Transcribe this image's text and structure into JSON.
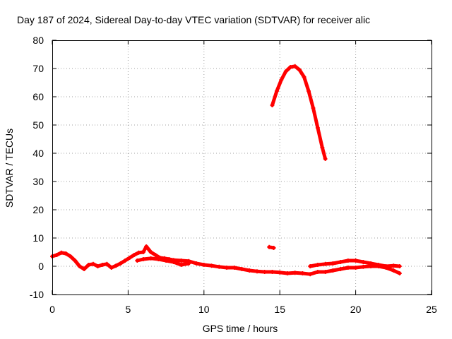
{
  "chart_data": {
    "type": "scatter",
    "title": "Day 187 of 2024, Sidereal Day-to-day VTEC variation (SDTVAR) for receiver alic",
    "xlabel": "GPS time / hours",
    "ylabel": "SDTVAR / TECUs",
    "xlim": [
      0,
      25
    ],
    "ylim": [
      -10,
      80
    ],
    "xticks": [
      0,
      5,
      10,
      15,
      20,
      25
    ],
    "xtick_labels": [
      "0",
      "5",
      "10",
      "15",
      "20",
      "25"
    ],
    "yticks": [
      -10,
      0,
      10,
      20,
      30,
      40,
      50,
      60,
      70,
      80
    ],
    "ytick_labels": [
      "-10",
      "0",
      "10",
      "20",
      "30",
      "40",
      "50",
      "60",
      "70",
      "80"
    ],
    "grid": true,
    "marker_color": "#ff0000",
    "series": [
      {
        "name": "main track",
        "points": [
          [
            0.0,
            3.5
          ],
          [
            0.3,
            4.0
          ],
          [
            0.6,
            4.8
          ],
          [
            0.9,
            4.5
          ],
          [
            1.2,
            3.5
          ],
          [
            1.5,
            2.0
          ],
          [
            1.8,
            0.0
          ],
          [
            2.1,
            -1.0
          ],
          [
            2.4,
            0.5
          ],
          [
            2.7,
            0.8
          ],
          [
            3.0,
            0.0
          ],
          [
            3.3,
            0.5
          ],
          [
            3.6,
            0.8
          ],
          [
            3.9,
            -0.5
          ],
          [
            4.2,
            0.2
          ],
          [
            4.5,
            1.0
          ],
          [
            4.8,
            2.0
          ],
          [
            5.1,
            3.0
          ],
          [
            5.4,
            4.0
          ],
          [
            5.7,
            4.8
          ],
          [
            6.0,
            5.0
          ],
          [
            6.2,
            7.0
          ],
          [
            6.5,
            5.0
          ],
          [
            6.8,
            4.0
          ],
          [
            7.1,
            3.0
          ],
          [
            7.4,
            2.8
          ],
          [
            7.7,
            2.5
          ],
          [
            8.0,
            2.2
          ],
          [
            8.5,
            2.0
          ],
          [
            9.0,
            1.8
          ],
          [
            9.5,
            1.0
          ],
          [
            10.0,
            0.5
          ],
          [
            10.5,
            0.2
          ],
          [
            11.0,
            -0.2
          ],
          [
            11.5,
            -0.5
          ],
          [
            12.0,
            -0.5
          ],
          [
            12.5,
            -1.0
          ],
          [
            13.0,
            -1.5
          ],
          [
            13.5,
            -1.8
          ],
          [
            14.0,
            -2.0
          ],
          [
            14.5,
            -2.0
          ],
          [
            15.0,
            -2.2
          ],
          [
            15.5,
            -2.5
          ],
          [
            16.0,
            -2.3
          ],
          [
            16.5,
            -2.5
          ],
          [
            17.0,
            -2.8
          ],
          [
            17.5,
            -2.0
          ],
          [
            18.0,
            -2.0
          ],
          [
            18.5,
            -1.5
          ],
          [
            19.0,
            -1.0
          ],
          [
            19.5,
            -0.5
          ],
          [
            20.0,
            -0.5
          ],
          [
            20.5,
            -0.2
          ],
          [
            21.0,
            0.0
          ],
          [
            21.5,
            0.0
          ],
          [
            22.0,
            -0.5
          ],
          [
            22.5,
            -1.5
          ],
          [
            22.9,
            -2.5
          ]
        ]
      },
      {
        "name": "upper branch",
        "points": [
          [
            5.6,
            2.0
          ],
          [
            6.0,
            2.5
          ],
          [
            6.5,
            2.8
          ],
          [
            7.0,
            2.5
          ],
          [
            7.5,
            2.0
          ],
          [
            8.0,
            1.5
          ],
          [
            8.5,
            0.5
          ],
          [
            9.0,
            1.0
          ],
          [
            17.0,
            0.0
          ],
          [
            17.5,
            0.5
          ],
          [
            18.0,
            0.8
          ],
          [
            18.5,
            1.0
          ],
          [
            19.0,
            1.5
          ],
          [
            19.5,
            2.0
          ],
          [
            20.0,
            2.0
          ],
          [
            20.5,
            1.5
          ],
          [
            21.0,
            1.0
          ],
          [
            21.5,
            0.5
          ],
          [
            22.0,
            0.0
          ],
          [
            22.5,
            0.2
          ],
          [
            22.9,
            0.0
          ]
        ]
      },
      {
        "name": "isolated",
        "points": [
          [
            14.3,
            6.8
          ],
          [
            14.6,
            6.5
          ]
        ]
      },
      {
        "name": "arc",
        "points": [
          [
            14.5,
            57.0
          ],
          [
            14.8,
            62.0
          ],
          [
            15.1,
            66.0
          ],
          [
            15.4,
            69.0
          ],
          [
            15.7,
            70.5
          ],
          [
            16.0,
            70.8
          ],
          [
            16.3,
            69.5
          ],
          [
            16.6,
            67.0
          ],
          [
            16.9,
            62.0
          ],
          [
            17.2,
            56.0
          ],
          [
            17.5,
            49.0
          ],
          [
            17.8,
            42.0
          ],
          [
            18.0,
            38.0
          ]
        ]
      }
    ]
  }
}
